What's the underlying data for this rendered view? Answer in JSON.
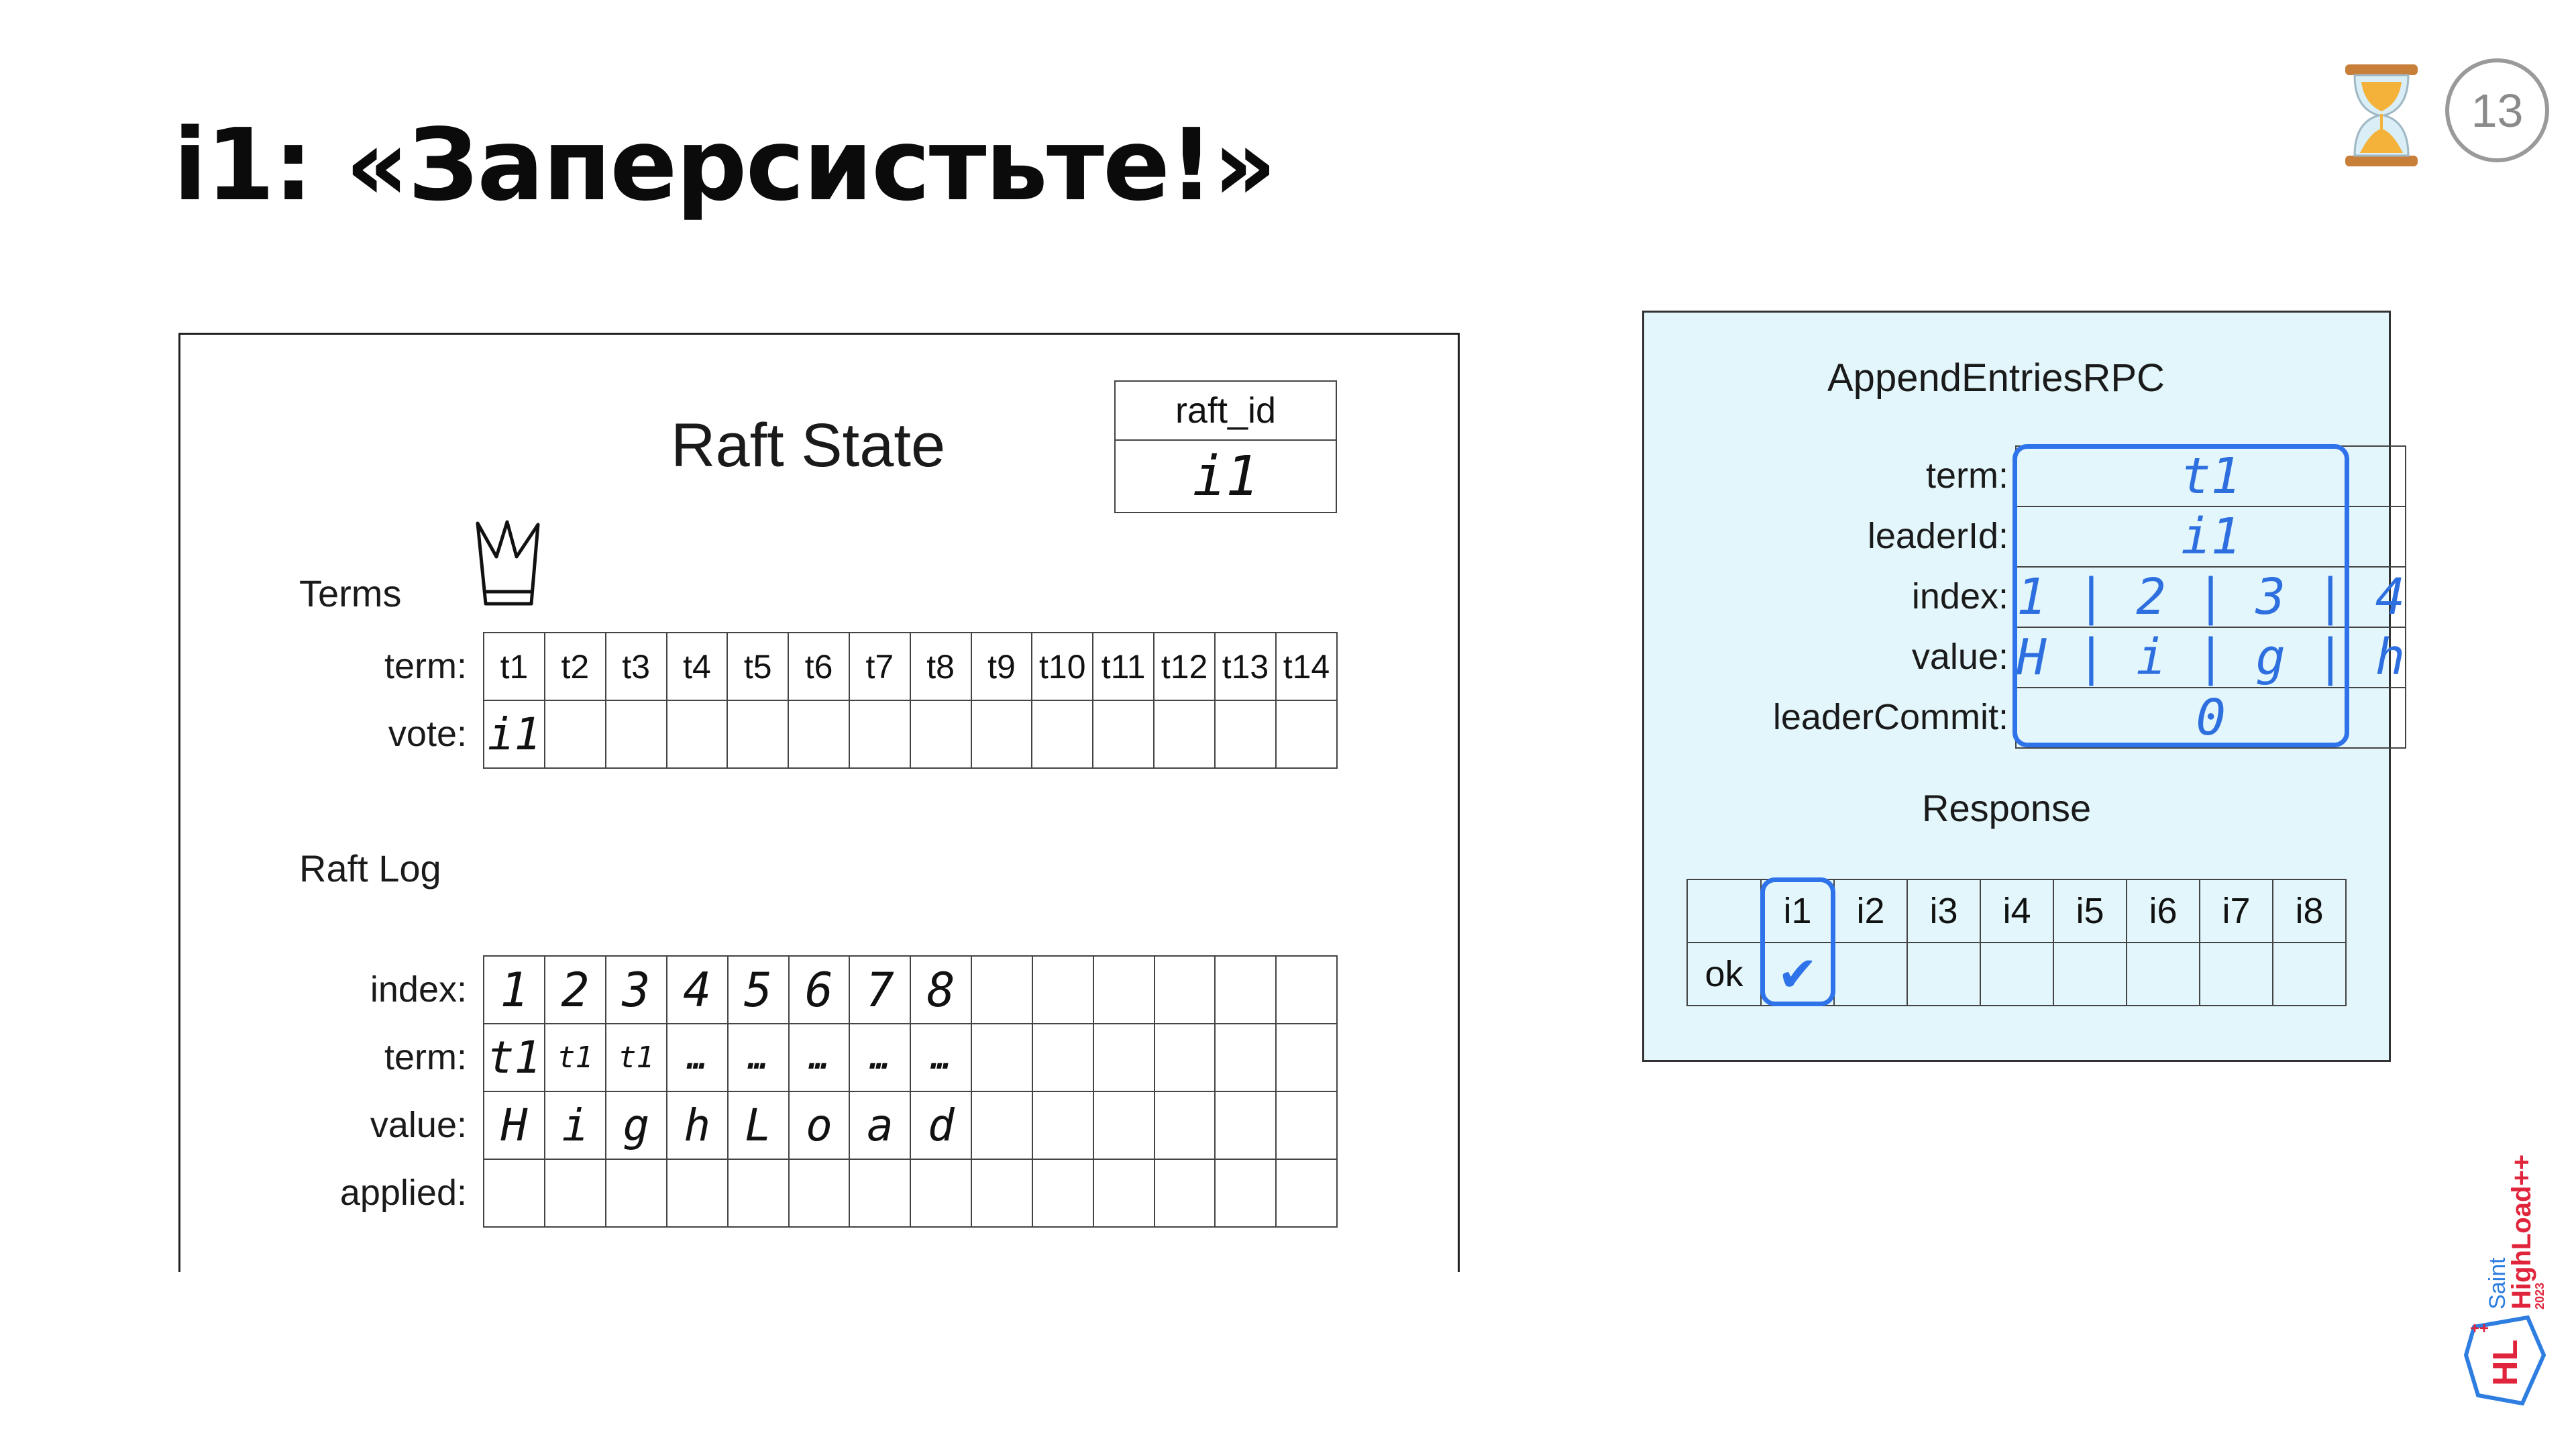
{
  "slide": {
    "title": "i1: «Заперсистьте!»",
    "page_number": "13",
    "icon": "hourglass-icon"
  },
  "raft_state": {
    "heading": "Raft State",
    "raft_id_label": "raft_id",
    "raft_id_value": "i1",
    "terms_label": "Terms",
    "term_row_label": "term:",
    "vote_row_label": "vote:",
    "terms": [
      "t1",
      "t2",
      "t3",
      "t4",
      "t5",
      "t6",
      "t7",
      "t8",
      "t9",
      "t10",
      "t11",
      "t12",
      "t13",
      "t14"
    ],
    "votes": [
      "i1",
      "",
      "",
      "",
      "",
      "",
      "",
      "",
      "",
      "",
      "",
      "",
      "",
      ""
    ],
    "log_label": "Raft Log",
    "index_row_label": "index:",
    "log_term_row_label": "term:",
    "value_row_label": "value:",
    "applied_row_label": "applied:",
    "log_index": [
      "1",
      "2",
      "3",
      "4",
      "5",
      "6",
      "7",
      "8",
      "",
      "",
      "",
      "",
      "",
      ""
    ],
    "log_term": [
      "t1",
      "t1",
      "t1",
      "…",
      "…",
      "…",
      "…",
      "…",
      "",
      "",
      "",
      "",
      "",
      ""
    ],
    "log_value": [
      "H",
      "i",
      "g",
      "h",
      "L",
      "o",
      "a",
      "d",
      "",
      "",
      "",
      "",
      "",
      ""
    ],
    "log_applied": [
      "",
      "",
      "",
      "",
      "",
      "",
      "",
      "",
      "",
      "",
      "",
      "",
      "",
      ""
    ]
  },
  "append_entries": {
    "heading": "AppendEntriesRPC",
    "fields": [
      {
        "label": "term:",
        "value": "t1"
      },
      {
        "label": "leaderId:",
        "value": "i1"
      },
      {
        "label": "index:",
        "value": "1 | 2 | 3 | 4"
      },
      {
        "label": "value:",
        "value": "H | i | g | h"
      },
      {
        "label": "leaderCommit:",
        "value": "0"
      }
    ],
    "response_heading": "Response",
    "response_nodes": [
      "i1",
      "i2",
      "i3",
      "i4",
      "i5",
      "i6",
      "i7",
      "i8"
    ],
    "response_ok_label": "ok",
    "response_ok": [
      "✔",
      "",
      "",
      "",
      "",
      "",
      "",
      ""
    ]
  },
  "colors": {
    "accent_blue": "#2f73ea",
    "panel_bg": "#e2f6fb"
  },
  "branding": {
    "logo_text_top": "Saint",
    "logo_text_main": "HighLoad++",
    "logo_year": "2023",
    "logo_badge": "HL"
  }
}
